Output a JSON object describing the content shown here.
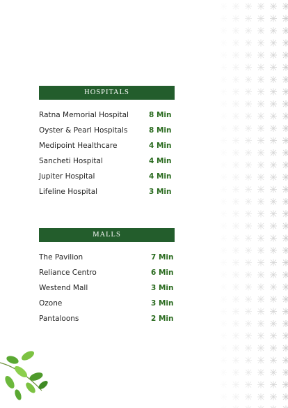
{
  "sections": [
    {
      "title": "HOSPITALS",
      "items": [
        {
          "name": "Ratna Memorial Hospital",
          "time": "8 Min"
        },
        {
          "name": "Oyster & Pearl Hospitals",
          "time": "8 Min"
        },
        {
          "name": "Medipoint Healthcare",
          "time": "4 Min"
        },
        {
          "name": "Sancheti Hospital",
          "time": "4 Min"
        },
        {
          "name": "Jupiter Hospital",
          "time": "4 Min"
        },
        {
          "name": "Lifeline Hospital",
          "time": "3 Min"
        }
      ]
    },
    {
      "title": "MALLS",
      "items": [
        {
          "name": "The Pavilion",
          "time": "7 Min"
        },
        {
          "name": "Reliance Centro",
          "time": "6 Min"
        },
        {
          "name": "Westend Mall",
          "time": "3 Min"
        },
        {
          "name": "Ozone",
          "time": "3 Min"
        },
        {
          "name": "Pantaloons",
          "time": "2 Min"
        }
      ]
    }
  ]
}
